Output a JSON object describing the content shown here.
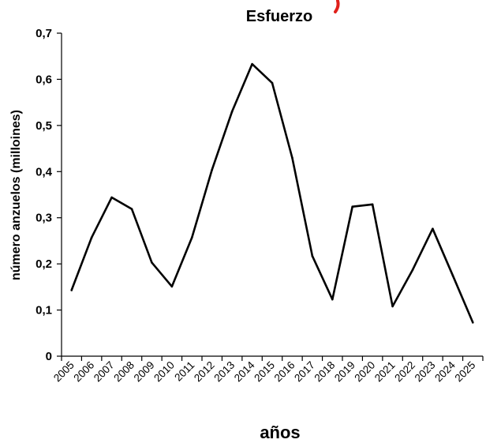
{
  "chart_data": {
    "type": "line",
    "title": "Esfuerzo",
    "xlabel": "años",
    "ylabel": "número anzuelos (milloines)",
    "ylim": [
      0,
      0.7
    ],
    "y_ticks": [
      "0",
      "0,1",
      "0,2",
      "0,3",
      "0,4",
      "0,5",
      "0,6",
      "0,7"
    ],
    "y_tick_values": [
      0,
      0.1,
      0.2,
      0.3,
      0.4,
      0.5,
      0.6,
      0.7
    ],
    "categories": [
      "2005",
      "2006",
      "2007",
      "2008",
      "2009",
      "2010",
      "2011",
      "2012",
      "2013",
      "2014",
      "2015",
      "2016",
      "2017",
      "2018",
      "2019",
      "2020",
      "2021",
      "2022",
      "2023",
      "2024",
      "2025"
    ],
    "series": [
      {
        "values": [
          0.143,
          0.257,
          0.344,
          0.319,
          0.203,
          0.151,
          0.257,
          0.404,
          0.53,
          0.633,
          0.592,
          0.43,
          0.217,
          0.123,
          0.324,
          0.329,
          0.108,
          0.187,
          0.276,
          0.175,
          0.073
        ],
        "color": "#000000"
      }
    ],
    "grid": false,
    "legend": "none",
    "annotation_color": "#e0201b"
  }
}
